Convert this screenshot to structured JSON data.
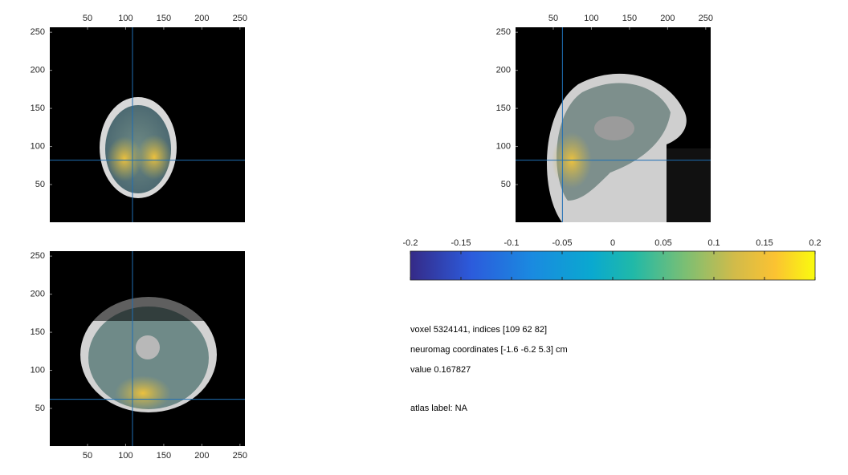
{
  "panels": [
    {
      "xlim": [
        0.5,
        256.5
      ],
      "ylim": [
        0.5,
        256.5
      ],
      "xticks": [
        50,
        100,
        150,
        200,
        250
      ],
      "yticks": [
        50,
        100,
        150,
        200,
        250
      ],
      "crosshair": [
        109,
        82
      ]
    },
    {
      "xlim": [
        0.5,
        256.5
      ],
      "ylim": [
        0.5,
        256.5
      ],
      "xticks": [
        50,
        100,
        150,
        200,
        250
      ],
      "yticks": [
        50,
        100,
        150,
        200,
        250
      ],
      "crosshair": [
        62,
        82
      ]
    },
    {
      "xlim": [
        0.5,
        256.5
      ],
      "ylim": [
        0.5,
        256.5
      ],
      "xticks": [
        50,
        100,
        150,
        200,
        250
      ],
      "yticks": [
        50,
        100,
        150,
        200,
        250
      ],
      "crosshair": [
        109,
        62
      ]
    }
  ],
  "colorbar": {
    "lim": [
      -0.2,
      0.2
    ],
    "ticks": [
      -0.2,
      -0.15,
      -0.1,
      -0.05,
      0,
      0.05,
      0.1,
      0.15,
      0.2
    ]
  },
  "info": [
    "voxel 5324141, indices [109 62 82]",
    "neuromag coordinates [-1.6 -6.2 5.3] cm",
    "value 0.167827",
    "atlas label: NA"
  ]
}
